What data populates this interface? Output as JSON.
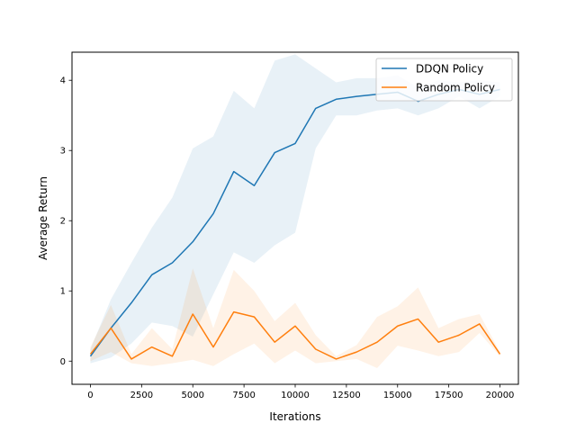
{
  "chart_data": {
    "type": "line",
    "title": "",
    "xlabel": "Iterations",
    "ylabel": "Average Return",
    "xlim": [
      -900,
      20900
    ],
    "ylim": [
      -0.33,
      4.4
    ],
    "x_ticks": [
      0,
      2500,
      5000,
      7500,
      10000,
      12500,
      15000,
      17500,
      20000
    ],
    "y_ticks": [
      0,
      1,
      2,
      3,
      4
    ],
    "grid": false,
    "legend_position": "top-right",
    "x": [
      0,
      1000,
      2000,
      3000,
      4000,
      5000,
      6000,
      7000,
      8000,
      9000,
      10000,
      11000,
      12000,
      13000,
      14000,
      15000,
      16000,
      17000,
      18000,
      19000,
      20000
    ],
    "series": [
      {
        "name": "DDQN Policy",
        "color": "#1f77b4",
        "values": [
          0.07,
          0.47,
          0.83,
          1.23,
          1.4,
          1.7,
          2.1,
          2.7,
          2.5,
          2.97,
          3.1,
          3.6,
          3.73,
          3.77,
          3.8,
          3.83,
          3.7,
          3.8,
          3.87,
          3.8,
          3.87
        ],
        "band_lower": [
          -0.03,
          0.05,
          0.25,
          0.55,
          0.5,
          0.35,
          0.95,
          1.55,
          1.4,
          1.65,
          1.83,
          3.03,
          3.5,
          3.5,
          3.57,
          3.6,
          3.5,
          3.6,
          3.77,
          3.6,
          3.77
        ],
        "band_upper": [
          0.17,
          0.88,
          1.4,
          1.9,
          2.33,
          3.03,
          3.2,
          3.85,
          3.6,
          4.28,
          4.37,
          4.17,
          3.97,
          4.03,
          4.03,
          4.07,
          3.9,
          4.0,
          3.97,
          4.0,
          3.97
        ]
      },
      {
        "name": "Random Policy",
        "color": "#ff7f0e",
        "values": [
          0.1,
          0.47,
          0.03,
          0.2,
          0.07,
          0.67,
          0.2,
          0.7,
          0.63,
          0.27,
          0.5,
          0.17,
          0.03,
          0.13,
          0.27,
          0.5,
          0.6,
          0.27,
          0.37,
          0.53,
          0.1
        ],
        "band_lower": [
          0.0,
          0.13,
          -0.03,
          -0.07,
          -0.03,
          0.02,
          -0.07,
          0.1,
          0.25,
          -0.03,
          0.15,
          -0.03,
          0.0,
          0.03,
          -0.1,
          0.22,
          0.15,
          0.07,
          0.13,
          0.4,
          0.07
        ],
        "band_upper": [
          0.2,
          0.8,
          0.1,
          0.47,
          0.17,
          1.32,
          0.47,
          1.3,
          1.0,
          0.57,
          0.83,
          0.37,
          0.07,
          0.23,
          0.63,
          0.78,
          1.05,
          0.47,
          0.6,
          0.67,
          0.13
        ]
      }
    ]
  }
}
